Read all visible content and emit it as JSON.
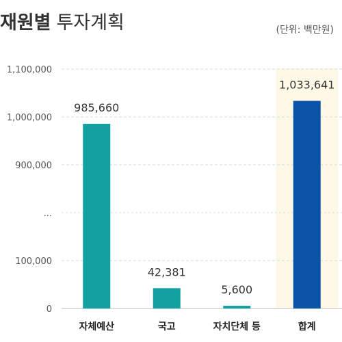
{
  "title": {
    "bold": "재원별",
    "rest": "투자계획"
  },
  "unit_note": "(단위: 백만원)",
  "chart_data": {
    "type": "bar",
    "categories": [
      "자체예산",
      "국고",
      "자치단체 등",
      "합계"
    ],
    "values": [
      985660,
      42381,
      5600,
      1033641
    ],
    "value_labels": [
      "985,660",
      "42,381",
      "5,600",
      "1,033,641"
    ],
    "y_ticks": [
      {
        "label": "1,100,000",
        "value": 1100000
      },
      {
        "label": "1,000,000",
        "value": 1000000
      },
      {
        "label": "900,000",
        "value": 900000
      },
      {
        "label": "...",
        "value": null
      },
      {
        "label": "100,000",
        "value": 100000
      },
      {
        "label": "0",
        "value": 0
      }
    ],
    "axis_break": true,
    "gridlines": "dashed",
    "colors": {
      "bar": "#12a0a0",
      "total_bar": "#0a54a8",
      "total_highlight": "#fdf9e6",
      "grid": "#d9d9d9"
    }
  }
}
